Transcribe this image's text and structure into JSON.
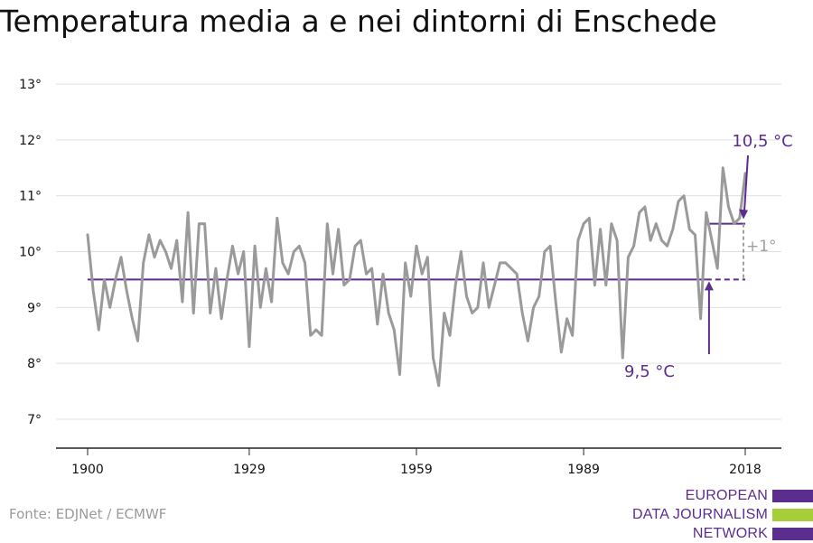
{
  "chart_data": {
    "type": "line",
    "title": "Temperatura media a e nei dintorni di Enschede",
    "xlabel": "",
    "ylabel": "",
    "xlim": [
      1900,
      2018
    ],
    "ylim": [
      6.5,
      13.2
    ],
    "x_ticks": [
      {
        "value": 1900,
        "label": "1900"
      },
      {
        "value": 1929,
        "label": "1929"
      },
      {
        "value": 1959,
        "label": "1959"
      },
      {
        "value": 1989,
        "label": "1989"
      },
      {
        "value": 2018,
        "label": "2018"
      }
    ],
    "y_ticks": [
      {
        "value": 7,
        "label": "7°"
      },
      {
        "value": 8,
        "label": "8°"
      },
      {
        "value": 9,
        "label": "9°"
      },
      {
        "value": 10,
        "label": "10°"
      },
      {
        "value": 11,
        "label": "11°"
      },
      {
        "value": 12,
        "label": "12°"
      },
      {
        "value": 13,
        "label": "13°"
      }
    ],
    "grid": true,
    "series": [
      {
        "color": "#9a9a9a",
        "x": [
          1900,
          1901,
          1902,
          1903,
          1904,
          1905,
          1906,
          1907,
          1908,
          1909,
          1910,
          1911,
          1912,
          1913,
          1914,
          1915,
          1916,
          1917,
          1918,
          1919,
          1920,
          1921,
          1922,
          1923,
          1924,
          1925,
          1926,
          1927,
          1928,
          1929,
          1930,
          1931,
          1932,
          1933,
          1934,
          1935,
          1936,
          1937,
          1938,
          1939,
          1940,
          1941,
          1942,
          1943,
          1944,
          1945,
          1946,
          1947,
          1948,
          1949,
          1950,
          1951,
          1952,
          1953,
          1954,
          1955,
          1956,
          1957,
          1958,
          1959,
          1960,
          1961,
          1962,
          1963,
          1964,
          1965,
          1966,
          1967,
          1968,
          1969,
          1970,
          1971,
          1972,
          1973,
          1974,
          1975,
          1976,
          1977,
          1978,
          1979,
          1980,
          1981,
          1982,
          1983,
          1984,
          1985,
          1986,
          1987,
          1988,
          1989,
          1990,
          1991,
          1992,
          1993,
          1994,
          1995,
          1996,
          1997,
          1998,
          1999,
          2000,
          2001,
          2002,
          2003,
          2004,
          2005,
          2006,
          2007,
          2008,
          2009,
          2010,
          2011,
          2012,
          2013,
          2014,
          2015,
          2016,
          2017,
          2018
        ],
        "values": [
          10.3,
          9.3,
          8.6,
          9.5,
          9.0,
          9.5,
          9.9,
          9.3,
          8.8,
          8.4,
          9.8,
          10.3,
          9.9,
          10.2,
          10.0,
          9.7,
          10.2,
          9.1,
          10.7,
          8.9,
          10.5,
          10.5,
          8.9,
          9.7,
          8.8,
          9.5,
          10.1,
          9.6,
          10.0,
          8.3,
          10.1,
          9.0,
          9.7,
          9.1,
          10.6,
          9.8,
          9.6,
          10.0,
          10.1,
          9.8,
          8.5,
          8.6,
          8.5,
          10.5,
          9.6,
          10.4,
          9.4,
          9.5,
          10.1,
          10.2,
          9.6,
          9.7,
          8.7,
          9.6,
          8.9,
          8.6,
          7.8,
          9.8,
          9.2,
          10.1,
          9.6,
          9.9,
          8.1,
          7.6,
          8.9,
          8.5,
          9.4,
          10.0,
          9.2,
          8.9,
          9.0,
          9.8,
          9.0,
          9.4,
          9.8,
          9.8,
          9.7,
          9.6,
          8.9,
          8.4,
          9.0,
          9.2,
          10.0,
          10.1,
          9.1,
          8.2,
          8.8,
          8.5,
          10.2,
          10.5,
          10.6,
          9.4,
          10.4,
          9.4,
          10.5,
          10.2,
          8.1,
          9.9,
          10.1,
          10.7,
          10.8,
          10.2,
          10.5,
          10.2,
          10.1,
          10.4,
          10.9,
          11.0,
          10.4,
          10.3,
          8.8,
          10.7,
          10.2,
          9.7,
          11.5,
          10.8,
          10.5,
          10.6,
          11.4
        ]
      }
    ],
    "reference_lines": [
      {
        "from": 1900,
        "to": 2011,
        "value": 9.5,
        "style": "solid",
        "color": "#5b2d8e"
      },
      {
        "from": 2011,
        "to": 2018,
        "value": 9.5,
        "style": "dashed",
        "color": "#5b2d8e"
      },
      {
        "from": 2011,
        "to": 2018,
        "value": 10.5,
        "style": "solid",
        "color": "#5b2d8e"
      }
    ],
    "annotations": [
      {
        "text": "10,5 °C",
        "color": "#5b2d8e"
      },
      {
        "text": "9,5 °C",
        "color": "#5b2d8e"
      },
      {
        "text": "+1°",
        "color": "#a0a0a0"
      }
    ]
  },
  "source": "Fonte: EDJNet / ECMWF",
  "logo": {
    "lines": [
      "EUROPEAN",
      "DATA JOURNALISM",
      "NETWORK"
    ],
    "bar_colors": [
      "#5b2d8e",
      "#a6ce39",
      "#5b2d8e"
    ]
  }
}
